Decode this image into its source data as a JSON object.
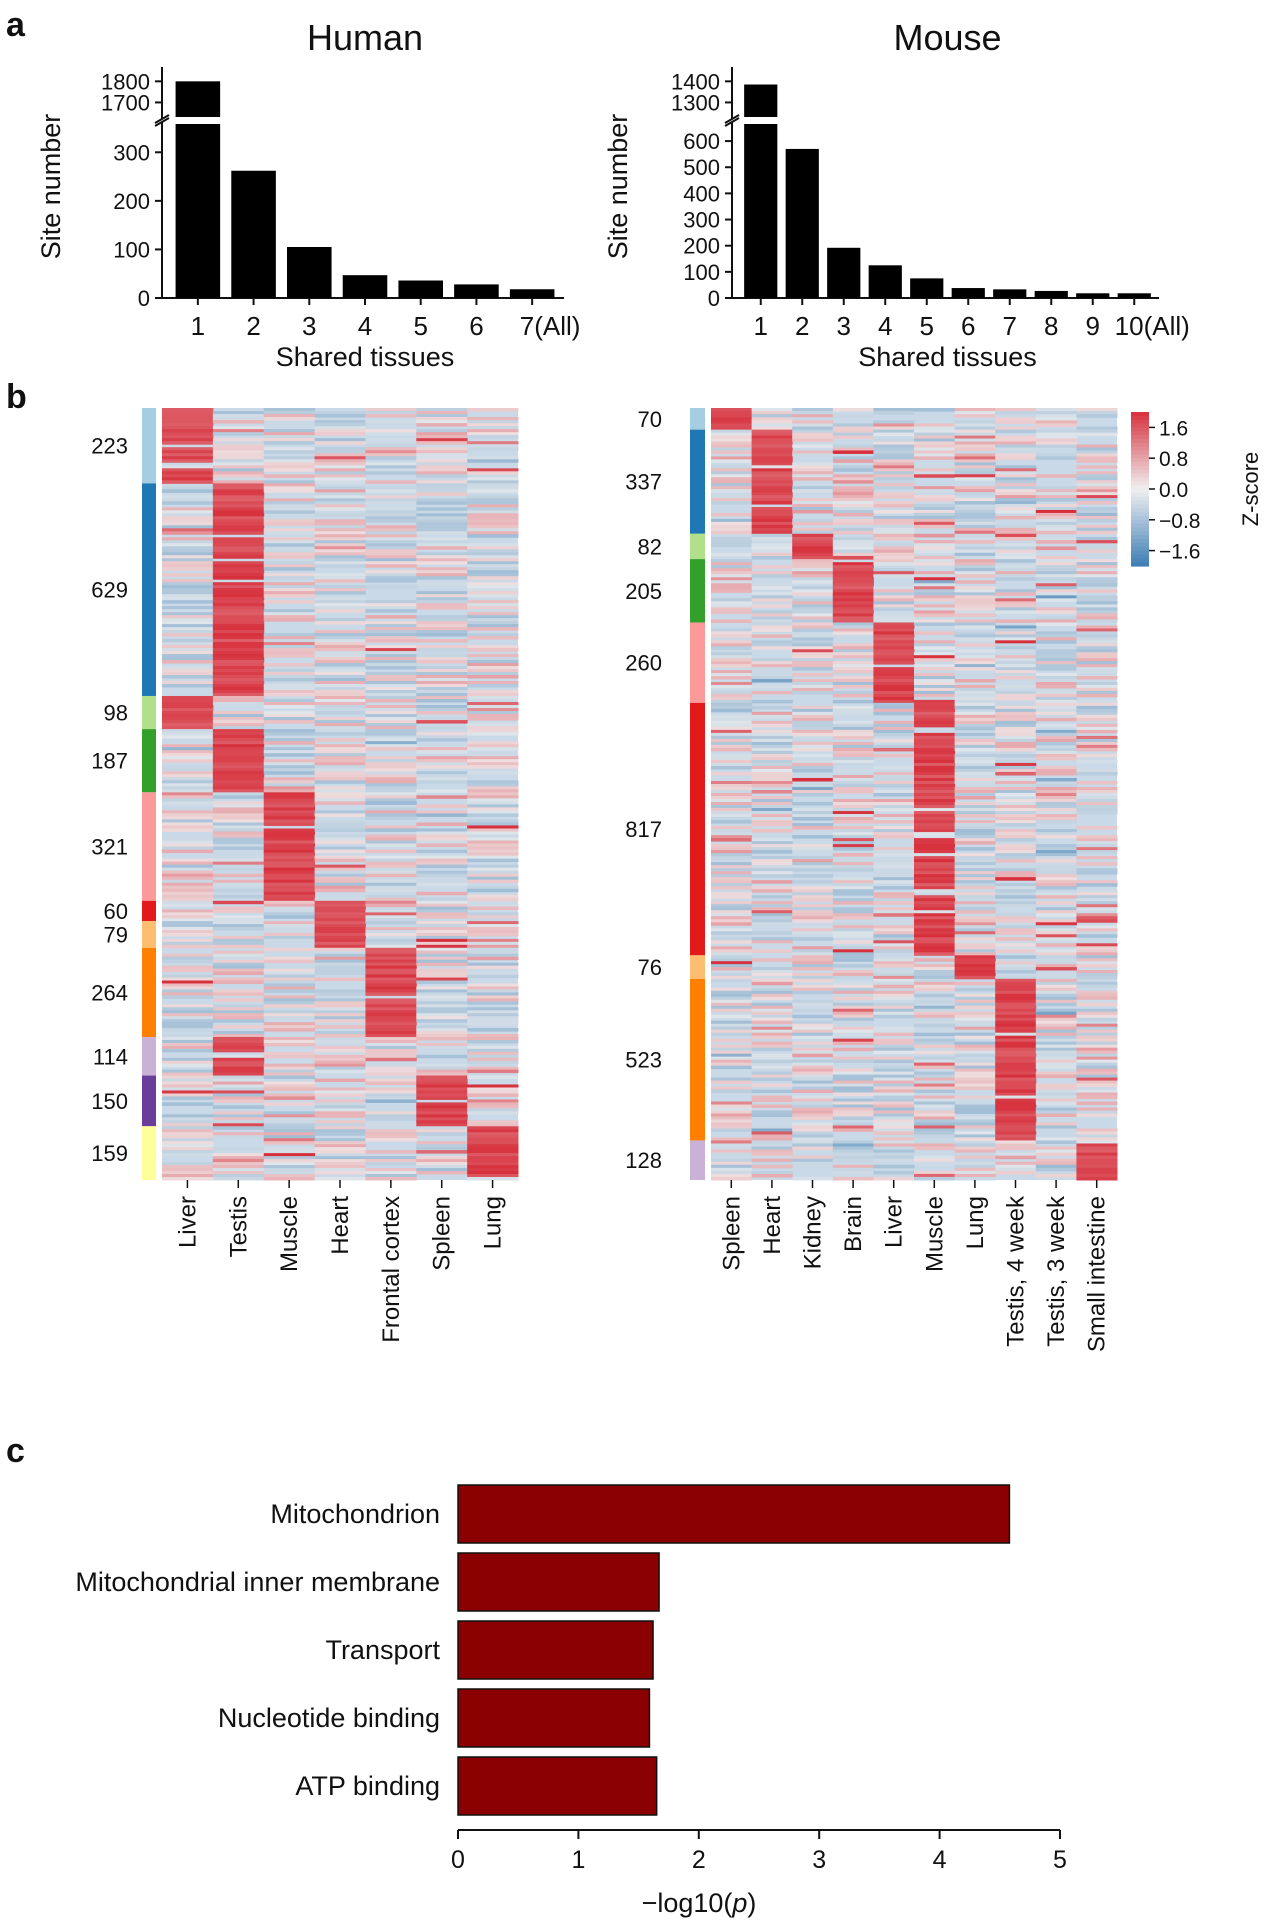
{
  "panel_letters": {
    "a": "a",
    "b": "b",
    "c": "c"
  },
  "chart_data": [
    {
      "id": "human_bar",
      "type": "bar",
      "title": "Human",
      "xlabel": "Shared tissues",
      "ylabel": "Site number",
      "categories": [
        "1",
        "2",
        "3",
        "4",
        "5",
        "6",
        "7(All)"
      ],
      "values": [
        1800,
        262,
        105,
        47,
        36,
        28,
        18
      ],
      "axis_break": {
        "lower_range": [
          0,
          350
        ],
        "upper_range": [
          1650,
          1830
        ]
      },
      "yticks_lower": [
        0,
        100,
        200,
        300
      ],
      "yticks_upper": [
        1700,
        1800
      ]
    },
    {
      "id": "mouse_bar",
      "type": "bar",
      "title": "Mouse",
      "xlabel": "Shared tissues",
      "ylabel": "Site number",
      "categories": [
        "1",
        "2",
        "3",
        "4",
        "5",
        "6",
        "7",
        "8",
        "9",
        "10(All)"
      ],
      "values": [
        1385,
        570,
        192,
        125,
        75,
        38,
        33,
        27,
        18,
        18
      ],
      "axis_break": {
        "lower_range": [
          0,
          650
        ],
        "upper_range": [
          1250,
          1430
        ]
      },
      "yticks_lower": [
        0,
        100,
        200,
        300,
        400,
        500,
        600
      ],
      "yticks_upper": [
        1300,
        1400
      ]
    },
    {
      "id": "human_heatmap",
      "type": "heatmap",
      "columns": [
        "Liver",
        "Testis",
        "Muscle",
        "Heart",
        "Frontal cortex",
        "Spleen",
        "Lung"
      ],
      "clusters": [
        {
          "label": "223",
          "count": 223,
          "color": "#a6cee3",
          "tissue": 0
        },
        {
          "label": "629",
          "count": 629,
          "color": "#1f78b4",
          "tissue": 1
        },
        {
          "label": "98",
          "count": 98,
          "color": "#b2df8a",
          "tissue": 0
        },
        {
          "label": "187",
          "count": 187,
          "color": "#33a02c",
          "tissue": 1
        },
        {
          "label": "321",
          "count": 321,
          "color": "#fb9a99",
          "tissue": 2
        },
        {
          "label": "60",
          "count": 60,
          "color": "#e31a1c",
          "tissue": 3
        },
        {
          "label": "79",
          "count": 79,
          "color": "#fdbf6f",
          "tissue": 3
        },
        {
          "label": "264",
          "count": 264,
          "color": "#ff7f00",
          "tissue": 4
        },
        {
          "label": "114",
          "count": 114,
          "color": "#cab2d6",
          "tissue": 1
        },
        {
          "label": "150",
          "count": 150,
          "color": "#6a3d9a",
          "tissue": 5
        },
        {
          "label": "159",
          "count": 159,
          "color": "#ffff99",
          "tissue": 6
        }
      ]
    },
    {
      "id": "mouse_heatmap",
      "type": "heatmap",
      "columns": [
        "Spleen",
        "Heart",
        "Kidney",
        "Brain",
        "Liver",
        "Muscle",
        "Lung",
        "Testis, 4 week",
        "Testis, 3 week",
        "Small intestine"
      ],
      "clusters": [
        {
          "label": "70",
          "count": 70,
          "color": "#a6cee3",
          "tissue": 0
        },
        {
          "label": "337",
          "count": 337,
          "color": "#1f78b4",
          "tissue": 1
        },
        {
          "label": "82",
          "count": 82,
          "color": "#b2df8a",
          "tissue": 2
        },
        {
          "label": "205",
          "count": 205,
          "color": "#33a02c",
          "tissue": 3
        },
        {
          "label": "260",
          "count": 260,
          "color": "#fb9a99",
          "tissue": 4
        },
        {
          "label": "817",
          "count": 817,
          "color": "#e31a1c",
          "tissue": 5
        },
        {
          "label": "76",
          "count": 76,
          "color": "#fdbf6f",
          "tissue": 6
        },
        {
          "label": "523",
          "count": 523,
          "color": "#ff7f00",
          "tissue": 7
        },
        {
          "label": "128",
          "count": 128,
          "color": "#cab2d6",
          "tissue": 9
        }
      ]
    },
    {
      "id": "zscore_colorbar",
      "type": "colorbar",
      "label": "Z-score",
      "ticks": [
        "1.6",
        "0.8",
        "0.0",
        "−0.8",
        "−1.6"
      ],
      "tick_values": [
        1.6,
        0.8,
        0.0,
        -0.8,
        -1.6
      ],
      "range": [
        -2.0,
        2.0
      ]
    },
    {
      "id": "go_bar",
      "type": "bar",
      "orientation": "horizontal",
      "categories": [
        "Mitochondrion",
        "Mitochondrial inner membrane",
        "Transport",
        "Nucleotide binding",
        "ATP binding"
      ],
      "values": [
        4.58,
        1.67,
        1.62,
        1.59,
        1.65
      ],
      "xlabel_prefix": "−log10(",
      "xlabel_italic": "p",
      "xlabel_suffix": ")",
      "xlim": [
        0,
        5
      ],
      "xticks": [
        0,
        1,
        2,
        3,
        4,
        5
      ],
      "bar_color": "#8b0000"
    }
  ]
}
